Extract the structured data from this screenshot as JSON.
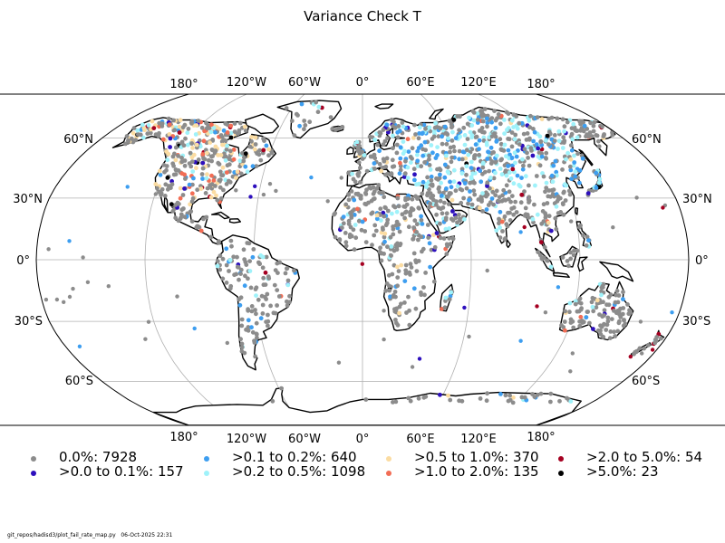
{
  "title": "Variance Check T",
  "colors": {
    "graticule": "#b0b0b0",
    "coast": "#000000",
    "ocean": "#ffffff"
  },
  "longitude_labels": [
    "180°",
    "120°W",
    "60°W",
    "0°",
    "60°E",
    "120°E",
    "180°"
  ],
  "latitude_labels": [
    "60°N",
    "30°N",
    "0°",
    "30°S",
    "60°S"
  ],
  "legend": [
    {
      "label": "0.0%: 7928",
      "color": "#8c8c8c",
      "dot_size": 5
    },
    {
      "label": ">0.0 to 0.1%: 157",
      "color": "#2d0fbd",
      "dot_size": 5
    },
    {
      "label": ">0.1 to 0.2%: 640",
      "color": "#3d9ef0",
      "dot_size": 5
    },
    {
      "label": ">0.2 to 0.5%: 1098",
      "color": "#9ff2fa",
      "dot_size": 5
    },
    {
      "label": ">0.5 to 1.0%: 370",
      "color": "#fbdca2",
      "dot_size": 5
    },
    {
      "label": ">1.0 to 2.0%: 135",
      "color": "#f26d55",
      "dot_size": 5
    },
    {
      "label": ">2.0 to 5.0%: 54",
      "color": "#a50021",
      "dot_size": 5
    },
    {
      "label": ">5.0%: 23",
      "color": "#000000",
      "dot_size": 4
    }
  ],
  "footer": "git_repos/hadisd3/plot_fail_rate_map.py   06-Oct-2025 22:31"
}
